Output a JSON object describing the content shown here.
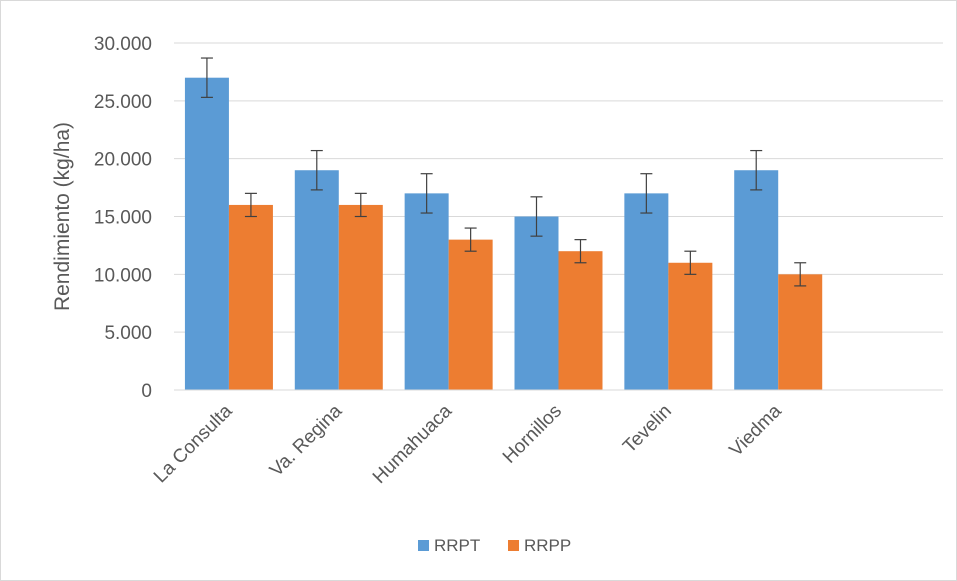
{
  "chart_data": {
    "type": "bar",
    "title": "",
    "xlabel": "",
    "ylabel": "Rendimiento (kg/ha)",
    "ylim": [
      0,
      30000
    ],
    "yticks": [
      0,
      5000,
      10000,
      15000,
      20000,
      25000,
      30000
    ],
    "ytick_labels": [
      "0",
      "5.000",
      "10.000",
      "15.000",
      "20.000",
      "25.000",
      "30.000"
    ],
    "grid": true,
    "legend_position": "bottom",
    "categories": [
      "La Consulta",
      "Va. Regina",
      "Humahuaca",
      "Hornillos",
      "Tevelin",
      "Viedma"
    ],
    "series": [
      {
        "name": "RRPT",
        "color": "#5b9bd5",
        "values": [
          27000,
          19000,
          17000,
          15000,
          17000,
          19000
        ],
        "errors": [
          1700,
          1700,
          1700,
          1700,
          1700,
          1700
        ]
      },
      {
        "name": "RRPP",
        "color": "#ed7d31",
        "values": [
          16000,
          16000,
          13000,
          12000,
          11000,
          10000
        ],
        "errors": [
          1000,
          1000,
          1000,
          1000,
          1000,
          1000
        ]
      }
    ]
  }
}
